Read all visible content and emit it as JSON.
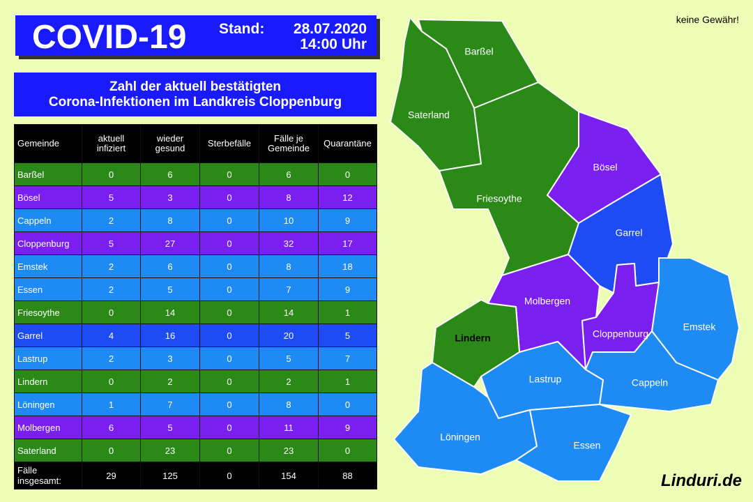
{
  "header": {
    "title": "COVID-19",
    "stand_label": "Stand:",
    "date": "28.07.2020",
    "time": "14:00 Uhr"
  },
  "disclaimer": "keine Gewähr!",
  "subtitle": [
    "Zahl der aktuell bestätigten",
    "Corona-Infektionen im Landkreis Cloppenburg"
  ],
  "table": {
    "columns": [
      "Gemeinde",
      "aktuell infiziert",
      "wieder gesund",
      "Sterbefälle",
      "Fälle je Gemeinde",
      "Quarantäne"
    ],
    "rows": [
      [
        "Barßel",
        0,
        6,
        0,
        6,
        0
      ],
      [
        "Bösel",
        5,
        3,
        0,
        8,
        12
      ],
      [
        "Cappeln",
        2,
        8,
        0,
        10,
        9
      ],
      [
        "Cloppenburg",
        5,
        27,
        0,
        32,
        17
      ],
      [
        "Emstek",
        2,
        6,
        0,
        8,
        18
      ],
      [
        "Essen",
        2,
        5,
        0,
        7,
        9
      ],
      [
        "Friesoythe",
        0,
        14,
        0,
        14,
        1
      ],
      [
        "Garrel",
        4,
        16,
        0,
        20,
        5
      ],
      [
        "Lastrup",
        2,
        3,
        0,
        5,
        7
      ],
      [
        "Lindern",
        0,
        2,
        0,
        2,
        1
      ],
      [
        "Löningen",
        1,
        7,
        0,
        8,
        0
      ],
      [
        "Molbergen",
        6,
        5,
        0,
        11,
        9
      ],
      [
        "Saterland",
        0,
        23,
        0,
        23,
        0
      ]
    ],
    "row_colors": [
      "#2b8a17",
      "#7a1ff0",
      "#1e8bf5",
      "#7a1ff0",
      "#1e8bf5",
      "#1e8bf5",
      "#2b8a17",
      "#1d4cf5",
      "#1e8bf5",
      "#2b8a17",
      "#1e8bf5",
      "#7a1ff0",
      "#2b8a17"
    ],
    "total": [
      "Fälle insgesamt:",
      29,
      125,
      0,
      154,
      88
    ]
  },
  "map": {
    "regions": [
      {
        "name": "Barßel",
        "color": "#2b8a17",
        "label_color": "#ffffff"
      },
      {
        "name": "Saterland",
        "color": "#2b8a17",
        "label_color": "#ffffff"
      },
      {
        "name": "Friesoythe",
        "color": "#2b8a17",
        "label_color": "#ffffff"
      },
      {
        "name": "Bösel",
        "color": "#7a1ff0",
        "label_color": "#ffffff"
      },
      {
        "name": "Garrel",
        "color": "#1d4cf5",
        "label_color": "#ffffff"
      },
      {
        "name": "Molbergen",
        "color": "#7a1ff0",
        "label_color": "#ffffff"
      },
      {
        "name": "Cloppenburg",
        "color": "#7a1ff0",
        "label_color": "#ffffff"
      },
      {
        "name": "Emstek",
        "color": "#1e8bf5",
        "label_color": "#ffffff"
      },
      {
        "name": "Lindern",
        "color": "#2b8a17",
        "label_color": "#000000"
      },
      {
        "name": "Lastrup",
        "color": "#1e8bf5",
        "label_color": "#ffffff"
      },
      {
        "name": "Cappeln",
        "color": "#1e8bf5",
        "label_color": "#ffffff"
      },
      {
        "name": "Löningen",
        "color": "#1e8bf5",
        "label_color": "#ffffff"
      },
      {
        "name": "Essen",
        "color": "#1e8bf5",
        "label_color": "#ffffff"
      }
    ]
  },
  "logo": "Linduri.de"
}
